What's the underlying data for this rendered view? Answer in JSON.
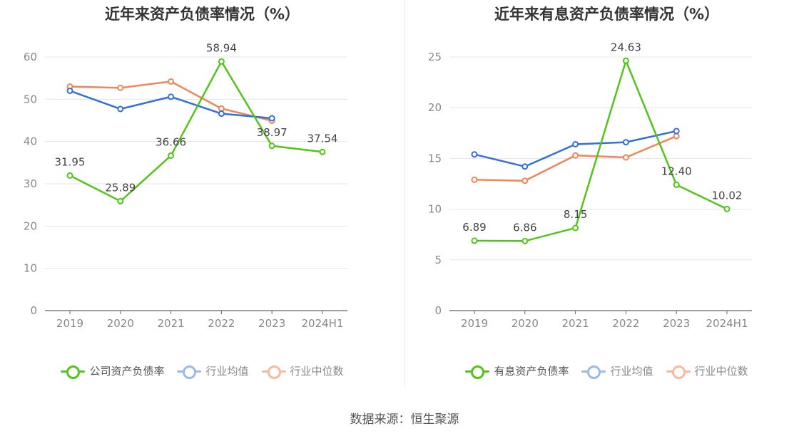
{
  "source_text": "数据来源：恒生聚源",
  "chart_data": [
    {
      "type": "line",
      "title": "近年来资产负债率情况（%）",
      "categories": [
        "2019",
        "2020",
        "2021",
        "2022",
        "2023",
        "2024H1"
      ],
      "ylim": [
        0,
        60
      ],
      "yticks": [
        0,
        10,
        20,
        30,
        40,
        50,
        60
      ],
      "grid": true,
      "legend_position": "bottom",
      "series": [
        {
          "name": "公司资产负债率",
          "color": "#52c41a",
          "values": [
            31.95,
            25.89,
            36.66,
            58.94,
            38.97,
            37.54
          ],
          "labels": [
            "31.95",
            "25.89",
            "36.66",
            "58.94",
            "38.97",
            "37.54"
          ]
        },
        {
          "name": "行业均值",
          "color": "#3370d8",
          "values": [
            52.0,
            47.7,
            50.6,
            46.6,
            45.5,
            null
          ]
        },
        {
          "name": "行业中位数",
          "color": "#f0855a",
          "values": [
            53.0,
            52.7,
            54.2,
            47.8,
            44.9,
            null
          ]
        }
      ]
    },
    {
      "type": "line",
      "title": "近年来有息资产负债率情况（%）",
      "categories": [
        "2019",
        "2020",
        "2021",
        "2022",
        "2023",
        "2024H1"
      ],
      "ylim": [
        0,
        25
      ],
      "yticks": [
        0,
        5,
        10,
        15,
        20,
        25
      ],
      "grid": true,
      "legend_position": "bottom",
      "series": [
        {
          "name": "有息资产负债率",
          "color": "#52c41a",
          "values": [
            6.89,
            6.86,
            8.15,
            24.63,
            12.4,
            10.02
          ],
          "labels": [
            "6.89",
            "6.86",
            "8.15",
            "24.63",
            "12.40",
            "10.02"
          ]
        },
        {
          "name": "行业均值",
          "color": "#3370d8",
          "values": [
            15.4,
            14.2,
            16.4,
            16.6,
            17.7,
            null
          ]
        },
        {
          "name": "行业中位数",
          "color": "#f0855a",
          "values": [
            12.9,
            12.8,
            15.3,
            15.1,
            17.2,
            null
          ]
        }
      ]
    }
  ]
}
